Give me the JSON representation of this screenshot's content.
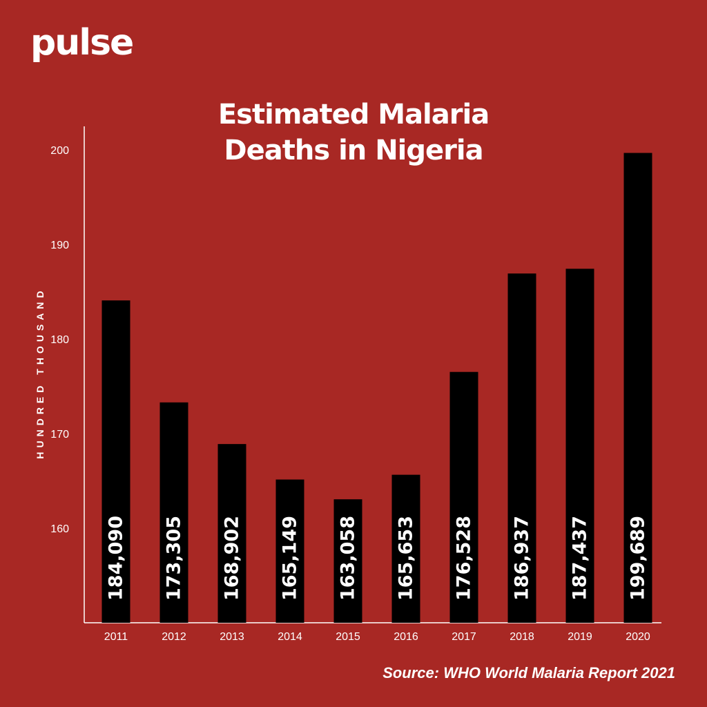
{
  "brand": {
    "logo_text": "pulse"
  },
  "colors": {
    "background": "#a82824",
    "bar": "#000000",
    "text": "#ffffff"
  },
  "chart_data": {
    "type": "bar",
    "title": "Estimated Malaria Deaths in Nigeria",
    "title_lines": [
      "Estimated Malaria",
      "Deaths in Nigeria"
    ],
    "ylabel": "HUNDRED THOUSAND",
    "xlabel": "",
    "categories": [
      "2011",
      "2012",
      "2013",
      "2014",
      "2015",
      "2016",
      "2017",
      "2018",
      "2019",
      "2020"
    ],
    "values": [
      184090,
      173305,
      168902,
      165149,
      163058,
      165653,
      176528,
      186937,
      187437,
      199689
    ],
    "data_labels": [
      "184,090",
      "173,305",
      "168,902",
      "165,149",
      "163,058",
      "165,653",
      "176,528",
      "186,937",
      "187,437",
      "199,689"
    ],
    "y_ticks": [
      160,
      170,
      180,
      190,
      200
    ],
    "ylim": [
      150,
      202.5
    ],
    "grid": false,
    "legend": "none"
  },
  "source": "Source: WHO World Malaria Report 2021"
}
